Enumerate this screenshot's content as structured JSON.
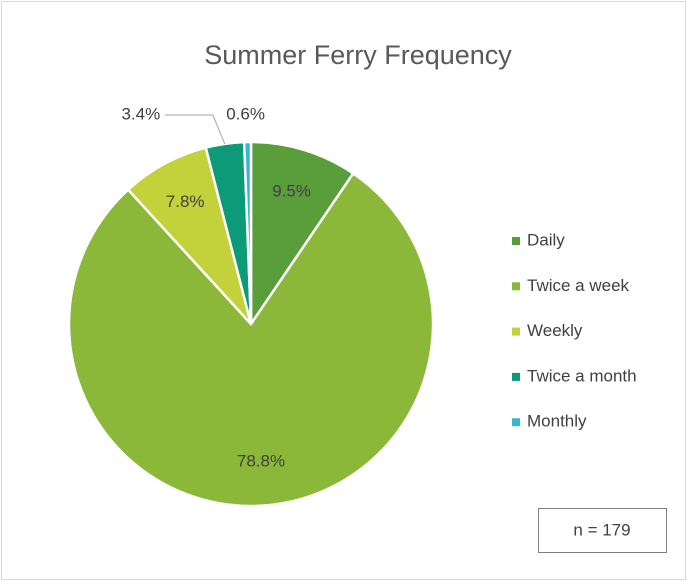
{
  "chart_data": {
    "type": "pie",
    "title": "Summer Ferry Frequency",
    "categories": [
      "Daily",
      "Twice a week",
      "Weekly",
      "Twice a month",
      "Monthly"
    ],
    "values": [
      9.5,
      78.8,
      7.8,
      3.4,
      0.6
    ],
    "value_labels": [
      "9.5%",
      "78.8%",
      "7.8%",
      "3.4%",
      "0.6%"
    ],
    "colors": [
      "#5a9e3c",
      "#8cb83a",
      "#c3d13b",
      "#0c9a78",
      "#3bb5c9"
    ],
    "legend": "right",
    "annotation": "n = 179"
  }
}
